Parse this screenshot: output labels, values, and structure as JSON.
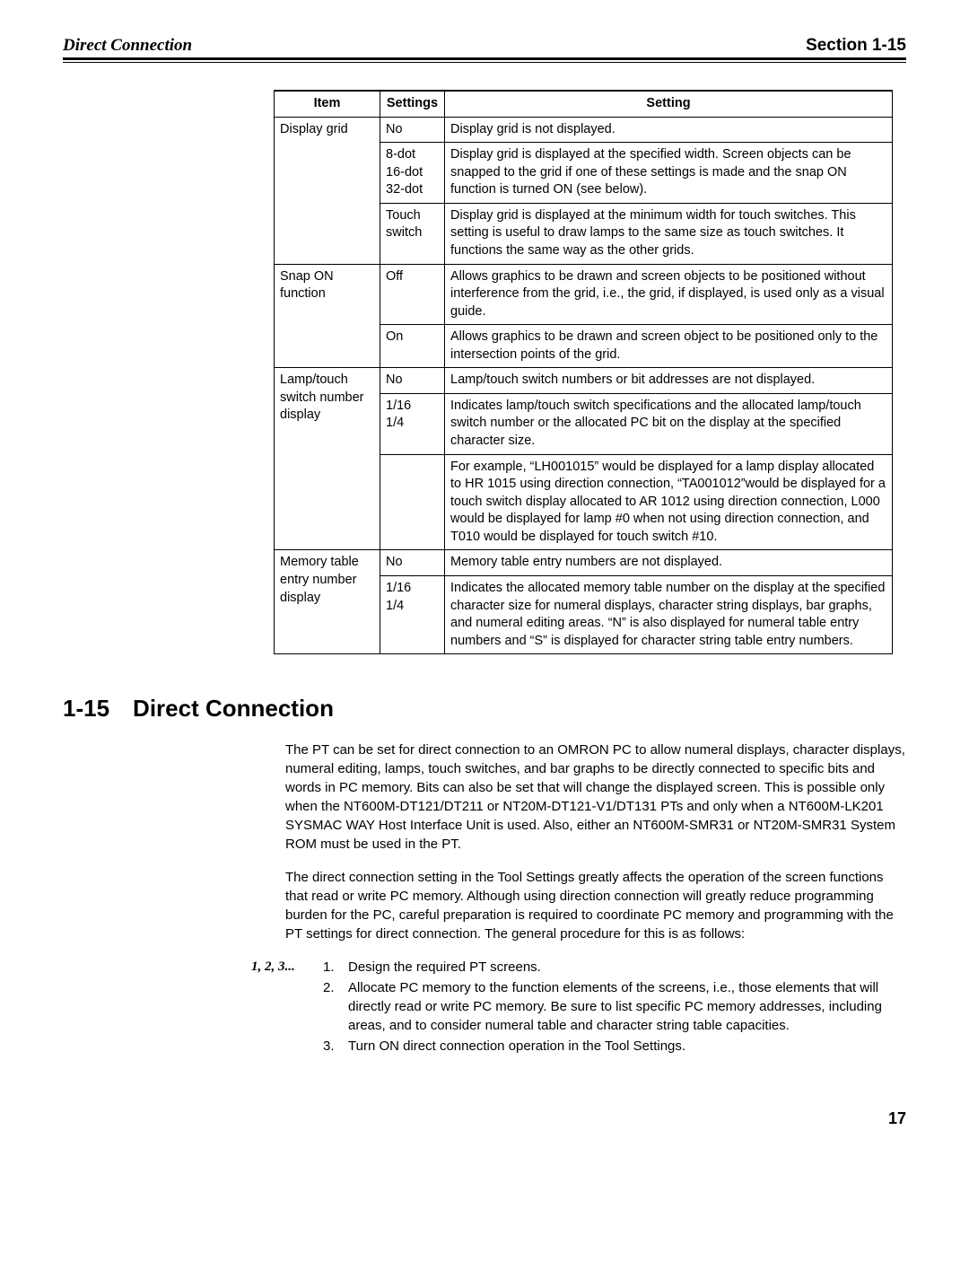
{
  "header": {
    "left": "Direct Connection",
    "right": "Section 1-15"
  },
  "table": {
    "headers": [
      "Item",
      "Settings",
      "Setting"
    ],
    "rows": [
      {
        "item": "Display grid",
        "item_rowspan": 3,
        "settings": "No",
        "desc": "Display grid is not displayed."
      },
      {
        "settings": "8-dot\n16-dot\n32-dot",
        "desc": "Display grid is displayed at the specified width. Screen objects can be snapped to the grid if one of these settings is made and the snap ON function is turned ON (see below)."
      },
      {
        "settings": "Touch switch",
        "desc": "Display grid is displayed at the minimum width for touch switches. This setting is useful to draw lamps to the same size as touch switches. It functions the same way as the other grids."
      },
      {
        "item": "Snap ON function",
        "item_rowspan": 2,
        "settings": "Off",
        "desc": "Allows graphics to be drawn and screen objects to be positioned without interference from the grid, i.e., the grid, if displayed, is used only as a visual guide."
      },
      {
        "settings": "On",
        "desc": "Allows graphics to be drawn and screen object to be positioned only to the intersection points of the grid."
      },
      {
        "item": "Lamp/touch switch number display",
        "item_rowspan": 3,
        "settings": "No",
        "desc": "Lamp/touch switch numbers or bit addresses are not displayed."
      },
      {
        "settings": "1/16\n1/4",
        "desc": "Indicates lamp/touch switch specifications and the allocated lamp/touch switch number or the allocated PC bit on the display at the specified character size."
      },
      {
        "settings": "",
        "desc": "For example, “LH001015” would be displayed for a lamp display allocated to HR 1015 using direction connection, “TA001012”would be displayed for a touch switch display allocated to AR 1012 using direction connection, L000 would be displayed for lamp #0 when not using direction connection, and T010 would be displayed for touch switch #10."
      },
      {
        "item": "Memory table entry number display",
        "item_rowspan": 2,
        "settings": "No",
        "desc": "Memory table entry numbers are not displayed."
      },
      {
        "settings": "1/16\n1/4",
        "desc": "Indicates the allocated memory table number on the display at the specified character size for numeral displays, character string displays, bar graphs, and numeral editing areas. “N” is also displayed for numeral table entry numbers and “S” is displayed for character string table entry numbers."
      }
    ]
  },
  "section": {
    "heading": "1-15 Direct Connection",
    "para1": "The PT can be set for direct connection to an OMRON PC to allow numeral displays, character displays, numeral editing, lamps, touch switches, and bar graphs to be directly connected to specific bits and words in PC memory. Bits can also be set that will change the displayed screen. This is possible only when the NT600M-DT121/DT211 or NT20M-DT121-V1/DT131 PTs and only when a NT600M-LK201 SYSMAC WAY Host Interface Unit is used. Also, either an NT600M-SMR31 or NT20M-SMR31 System ROM must be used in the PT.",
    "para2": "The direct connection setting in the Tool Settings greatly affects the operation of the screen functions that read or write PC memory. Although using direction connection will greatly reduce programming burden for the PC, careful preparation is required to coordinate PC memory and programming with the PT settings for direct connection. The general procedure for this is as follows:",
    "list_label": "1, 2, 3...",
    "steps": [
      "Design the required PT screens.",
      "Allocate PC memory to the function elements of the screens, i.e., those elements that will directly read or write PC memory. Be sure to list specific PC memory addresses, including areas, and to consider numeral table and character string table capacities.",
      "Turn ON direct connection operation in the Tool Settings."
    ]
  },
  "page_number": "17"
}
